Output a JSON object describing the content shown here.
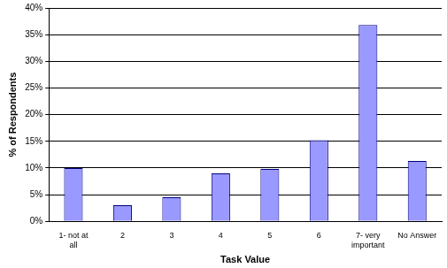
{
  "chart_data": {
    "type": "bar",
    "x_label": "Task Value",
    "y_label": "% of Respondents",
    "categories": [
      "1- not at all",
      "2",
      "3",
      "4",
      "5",
      "6",
      "7- very important",
      "No Answer"
    ],
    "values": [
      10,
      3,
      4.5,
      9,
      9.8,
      15.2,
      36.8,
      11.3
    ],
    "color": "#9999ff",
    "ylim": [
      0,
      40
    ],
    "yticks": [
      {
        "value": 0,
        "label": "0%"
      },
      {
        "value": 5,
        "label": "5%"
      },
      {
        "value": 10,
        "label": "10%"
      },
      {
        "value": 15,
        "label": "15%"
      },
      {
        "value": 20,
        "label": "20%"
      },
      {
        "value": 25,
        "label": "25%"
      },
      {
        "value": 30,
        "label": "30%"
      },
      {
        "value": 35,
        "label": "35%"
      },
      {
        "value": 40,
        "label": "40%"
      }
    ],
    "grid": true
  }
}
